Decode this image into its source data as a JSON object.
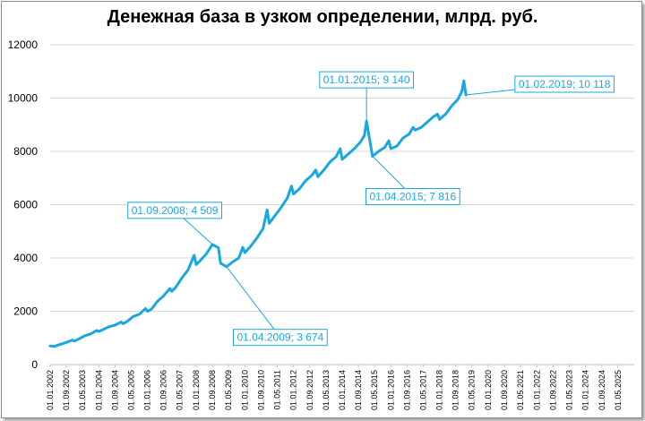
{
  "chart_data": {
    "type": "line",
    "title": "Денежная база в узком определении, млрд. руб.",
    "xlabel": "",
    "ylabel": "",
    "ylim": [
      0,
      12000
    ],
    "yticks": [
      0,
      2000,
      4000,
      6000,
      8000,
      10000,
      12000
    ],
    "ytick_labels": [
      "0",
      "2000",
      "4000",
      "6000",
      "8000",
      "10000",
      "12000"
    ],
    "xlim": [
      "2002-01-01",
      "2026-01-01"
    ],
    "xtick_labels": [
      "01.01.2002",
      "01.09.2002",
      "01.05.2003",
      "01.01.2004",
      "01.09.2004",
      "01.05.2005",
      "01.01.2006",
      "01.09.2006",
      "01.05.2007",
      "01.01.2008",
      "01.09.2008",
      "01.05.2009",
      "01.01.2010",
      "01.09.2010",
      "01.05.2011",
      "01.01.2012",
      "01.09.2012",
      "01.05.2013",
      "01.01.2014",
      "01.09.2014",
      "01.05.2015",
      "01.01.2016",
      "01.09.2016",
      "01.05.2017",
      "01.01.2018",
      "01.09.2018",
      "01.05.2019",
      "01.01.2020",
      "01.09.2020",
      "01.05.2021",
      "01.01.2022",
      "01.09.2022",
      "01.05.2023",
      "01.01.2024",
      "01.09.2024",
      "01.05.2025"
    ],
    "grid": "horizontal",
    "series_color": "#1aa7e0",
    "series": [
      {
        "x": [
          "2002-01-01",
          "2002-03-01",
          "2002-06-01",
          "2002-09-01",
          "2002-12-01",
          "2003-01-01",
          "2003-03-01",
          "2003-06-01",
          "2003-09-01",
          "2003-12-01",
          "2004-01-01",
          "2004-03-01",
          "2004-06-01",
          "2004-09-01",
          "2004-12-01",
          "2005-01-01",
          "2005-03-01",
          "2005-06-01",
          "2005-09-01",
          "2005-12-01",
          "2006-01-01",
          "2006-03-01",
          "2006-06-01",
          "2006-09-01",
          "2006-12-01",
          "2007-01-01",
          "2007-03-01",
          "2007-06-01",
          "2007-09-01",
          "2007-12-01",
          "2008-01-01",
          "2008-03-01",
          "2008-06-01",
          "2008-09-01",
          "2008-12-01",
          "2009-01-01",
          "2009-04-01",
          "2009-07-01",
          "2009-10-01",
          "2009-12-01",
          "2010-01-01",
          "2010-04-01",
          "2010-07-01",
          "2010-10-01",
          "2010-12-01",
          "2011-01-01",
          "2011-04-01",
          "2011-07-01",
          "2011-10-01",
          "2011-12-01",
          "2012-01-01",
          "2012-04-01",
          "2012-07-01",
          "2012-10-01",
          "2012-12-01",
          "2013-01-01",
          "2013-04-01",
          "2013-07-01",
          "2013-10-01",
          "2013-12-01",
          "2014-01-01",
          "2014-04-01",
          "2014-07-01",
          "2014-10-01",
          "2014-12-01",
          "2015-01-01",
          "2015-04-01",
          "2015-07-01",
          "2015-10-01",
          "2015-12-01",
          "2016-01-01",
          "2016-04-01",
          "2016-07-01",
          "2016-10-01",
          "2016-12-01",
          "2017-01-01",
          "2017-04-01",
          "2017-07-01",
          "2017-10-01",
          "2017-12-01",
          "2018-01-01",
          "2018-04-01",
          "2018-07-01",
          "2018-10-01",
          "2018-12-01",
          "2019-01-01",
          "2019-02-01"
        ],
        "values": [
          700,
          680,
          760,
          830,
          920,
          880,
          950,
          1080,
          1150,
          1280,
          1240,
          1310,
          1420,
          1480,
          1600,
          1530,
          1620,
          1800,
          1890,
          2100,
          2000,
          2080,
          2380,
          2580,
          2850,
          2750,
          2900,
          3250,
          3550,
          4100,
          3750,
          3900,
          4150,
          4509,
          4380,
          3800,
          3674,
          3850,
          4000,
          4400,
          4200,
          4450,
          4750,
          5100,
          5800,
          5300,
          5600,
          5900,
          6250,
          6700,
          6400,
          6600,
          6900,
          7100,
          7300,
          7050,
          7300,
          7600,
          7800,
          8100,
          7700,
          7900,
          8100,
          8350,
          8600,
          9140,
          7816,
          8000,
          8150,
          8400,
          8100,
          8200,
          8500,
          8650,
          8900,
          8800,
          8900,
          9100,
          9300,
          9400,
          9200,
          9400,
          9700,
          9950,
          10250,
          10650,
          10118
        ]
      }
    ],
    "annotations": [
      {
        "label": "01.09.2008; 4 509",
        "x": "2008-09-01",
        "y": 4509
      },
      {
        "label": "01.04.2009; 3 674",
        "x": "2009-04-01",
        "y": 3674
      },
      {
        "label": "01.01.2015; 9 140",
        "x": "2015-01-01",
        "y": 9140
      },
      {
        "label": "01.04.2015; 7 816",
        "x": "2015-04-01",
        "y": 7816
      },
      {
        "label": "01.02.2019; 10 118",
        "x": "2019-02-01",
        "y": 10118
      }
    ]
  }
}
